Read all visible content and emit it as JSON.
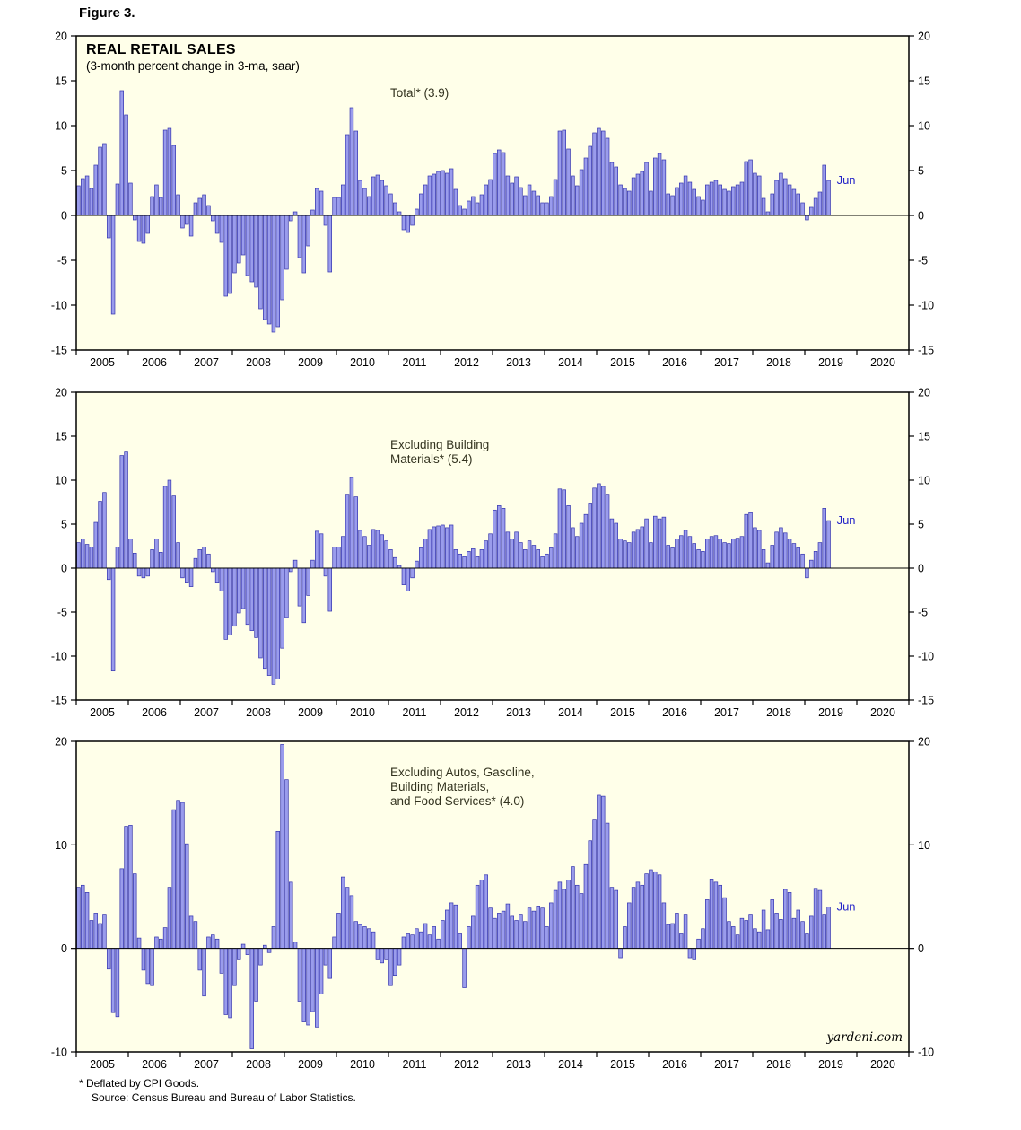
{
  "figure_label": "Figure 3.",
  "header": {
    "title": "REAL RETAIL SALES",
    "subtitle": "(3-month percent change in 3-ma, saar)"
  },
  "footnotes": {
    "deflator": "* Deflated by CPI Goods.",
    "source": "Source: Census Bureau and Bureau of Labor Statistics."
  },
  "watermark": "yardeni.com",
  "colors": {
    "panel_bg": "#FFFFE9",
    "bar_fill": "#9A9CEC",
    "bar_stroke": "#3434AE",
    "axis": "#000000",
    "annotation": "#33331F",
    "latest_label": "#2323C8"
  },
  "x_years": [
    "2005",
    "2006",
    "2007",
    "2008",
    "2009",
    "2010",
    "2011",
    "2012",
    "2013",
    "2014",
    "2015",
    "2016",
    "2017",
    "2018",
    "2019",
    "2020"
  ],
  "chart_data": [
    {
      "type": "bar",
      "title": "Total* (3.9)",
      "label_lines": [
        "Total* (3.9)"
      ],
      "latest_label": "Jun",
      "latest_value": 3.9,
      "ylim": [
        -15,
        20
      ],
      "yticks": [
        20,
        15,
        10,
        5,
        0,
        -5,
        -10,
        -15
      ],
      "x_start": "2005-01",
      "x_end": "2019-06",
      "values": [
        3.3,
        4.1,
        4.4,
        3.0,
        5.6,
        7.6,
        8.0,
        -2.5,
        -11.0,
        3.5,
        13.9,
        11.2,
        3.6,
        -0.5,
        -2.9,
        -3.1,
        -2.0,
        2.1,
        3.4,
        2.0,
        9.5,
        9.7,
        7.8,
        2.3,
        -1.4,
        -1.0,
        -2.3,
        1.4,
        1.9,
        2.3,
        1.1,
        -0.6,
        -2.0,
        -3.0,
        -9.0,
        -8.7,
        -6.4,
        -5.3,
        -4.4,
        -6.7,
        -7.4,
        -8.0,
        -10.4,
        -11.6,
        -12.1,
        -13.0,
        -12.4,
        -9.4,
        -6.0,
        -0.6,
        0.4,
        -4.7,
        -6.4,
        -3.4,
        0.6,
        3.0,
        2.7,
        -1.1,
        -6.3,
        2.0,
        2.0,
        3.4,
        9.0,
        12.0,
        9.4,
        3.9,
        3.0,
        2.1,
        4.3,
        4.5,
        3.9,
        3.3,
        2.4,
        1.4,
        0.4,
        -1.6,
        -1.9,
        -1.1,
        0.7,
        2.4,
        3.4,
        4.4,
        4.6,
        4.9,
        5.0,
        4.7,
        5.2,
        2.9,
        1.1,
        0.7,
        1.6,
        2.1,
        1.4,
        2.3,
        3.4,
        4.0,
        6.9,
        7.3,
        7.0,
        4.4,
        3.6,
        4.3,
        3.1,
        2.2,
        3.4,
        2.7,
        2.2,
        1.4,
        1.4,
        2.1,
        4.0,
        9.4,
        9.5,
        7.4,
        4.4,
        3.3,
        5.1,
        6.4,
        7.7,
        9.2,
        9.7,
        9.4,
        8.6,
        5.9,
        5.4,
        3.4,
        3.0,
        2.7,
        4.2,
        4.6,
        4.9,
        5.9,
        2.7,
        6.4,
        6.9,
        6.2,
        2.4,
        2.2,
        3.1,
        3.6,
        4.4,
        3.7,
        2.9,
        2.1,
        1.7,
        3.4,
        3.7,
        3.9,
        3.4,
        2.9,
        2.7,
        3.2,
        3.4,
        3.7,
        6.0,
        6.2,
        4.7,
        4.4,
        1.9,
        0.4,
        2.4,
        3.9,
        4.7,
        4.1,
        3.4,
        2.9,
        2.4,
        1.4,
        -0.5,
        0.9,
        1.9,
        2.6,
        5.6,
        3.9
      ]
    },
    {
      "type": "bar",
      "title": "Excluding Building Materials* (5.4)",
      "label_lines": [
        "Excluding Building",
        "Materials* (5.4)"
      ],
      "latest_label": "Jun",
      "latest_value": 5.4,
      "ylim": [
        -15,
        20
      ],
      "yticks": [
        20,
        15,
        10,
        5,
        0,
        -5,
        -10,
        -15
      ],
      "x_start": "2005-01",
      "x_end": "2019-06",
      "values": [
        2.9,
        3.3,
        2.7,
        2.4,
        5.2,
        7.6,
        8.6,
        -1.3,
        -11.7,
        2.4,
        12.8,
        13.2,
        3.3,
        1.7,
        -0.9,
        -1.1,
        -0.9,
        2.1,
        3.3,
        1.8,
        9.3,
        10.0,
        8.2,
        2.9,
        -1.1,
        -1.6,
        -2.1,
        1.1,
        2.1,
        2.4,
        1.6,
        -0.4,
        -1.6,
        -2.6,
        -8.1,
        -7.6,
        -6.6,
        -5.1,
        -4.6,
        -6.4,
        -7.1,
        -7.9,
        -10.2,
        -11.4,
        -12.2,
        -13.2,
        -12.6,
        -9.1,
        -5.6,
        -0.4,
        0.9,
        -4.3,
        -6.2,
        -3.1,
        0.9,
        4.2,
        3.9,
        -0.9,
        -4.9,
        2.4,
        2.4,
        3.6,
        8.4,
        10.3,
        8.1,
        4.3,
        3.6,
        2.6,
        4.4,
        4.3,
        3.8,
        3.1,
        2.1,
        1.2,
        0.3,
        -1.9,
        -2.6,
        -1.1,
        0.8,
        2.3,
        3.3,
        4.4,
        4.7,
        4.8,
        4.9,
        4.6,
        4.9,
        2.1,
        1.6,
        1.3,
        1.9,
        2.2,
        1.3,
        2.1,
        3.1,
        3.9,
        6.6,
        7.1,
        6.8,
        4.1,
        3.3,
        4.1,
        2.9,
        2.1,
        3.1,
        2.6,
        2.1,
        1.3,
        1.6,
        2.3,
        3.9,
        9.0,
        8.9,
        7.1,
        4.6,
        3.6,
        5.1,
        6.1,
        7.4,
        9.1,
        9.6,
        9.3,
        8.4,
        5.6,
        5.1,
        3.3,
        3.1,
        2.9,
        4.1,
        4.4,
        4.7,
        5.6,
        2.9,
        5.9,
        5.6,
        5.8,
        2.6,
        2.3,
        3.3,
        3.7,
        4.3,
        3.6,
        2.8,
        2.1,
        1.9,
        3.3,
        3.6,
        3.7,
        3.3,
        2.9,
        2.8,
        3.3,
        3.4,
        3.6,
        6.1,
        6.3,
        4.6,
        4.3,
        2.1,
        0.6,
        2.6,
        4.1,
        4.6,
        4.0,
        3.3,
        2.8,
        2.3,
        1.6,
        -1.1,
        0.9,
        1.9,
        2.9,
        6.8,
        5.4
      ]
    },
    {
      "type": "bar",
      "title": "Excluding Autos, Gasoline, Building Materials, and Food Services* (4.0)",
      "label_lines": [
        "Excluding Autos, Gasoline,",
        "Building Materials,",
        "and Food Services* (4.0)"
      ],
      "latest_label": "Jun",
      "latest_value": 4.0,
      "ylim": [
        -10,
        20
      ],
      "yticks": [
        20,
        10,
        0,
        -10
      ],
      "x_start": "2005-01",
      "x_end": "2019-06",
      "values": [
        5.9,
        6.1,
        5.4,
        2.7,
        3.4,
        2.4,
        3.3,
        -2.0,
        -6.2,
        -6.6,
        7.7,
        11.8,
        11.9,
        7.2,
        1.0,
        -2.1,
        -3.4,
        -3.6,
        1.1,
        0.9,
        2.0,
        5.9,
        13.4,
        14.3,
        14.1,
        10.1,
        3.1,
        2.6,
        -2.1,
        -4.6,
        1.1,
        1.3,
        0.9,
        -2.4,
        -6.4,
        -6.7,
        -3.6,
        -1.1,
        0.4,
        -0.6,
        -9.7,
        -5.1,
        -1.6,
        0.3,
        -0.4,
        2.1,
        11.3,
        19.7,
        16.3,
        6.4,
        0.6,
        -5.1,
        -7.1,
        -7.4,
        -6.1,
        -7.6,
        -4.4,
        -1.6,
        -2.9,
        1.1,
        3.4,
        6.9,
        5.9,
        5.1,
        2.6,
        2.3,
        2.1,
        1.9,
        1.6,
        -1.1,
        -1.4,
        -1.1,
        -3.6,
        -2.6,
        -1.6,
        1.1,
        1.4,
        1.3,
        1.9,
        1.6,
        2.4,
        1.3,
        2.1,
        0.9,
        2.7,
        3.7,
        4.4,
        4.2,
        1.4,
        -3.8,
        2.1,
        3.1,
        6.1,
        6.6,
        7.1,
        3.9,
        2.9,
        3.4,
        3.6,
        4.3,
        3.1,
        2.7,
        3.3,
        2.6,
        3.9,
        3.6,
        4.1,
        3.9,
        2.1,
        4.4,
        5.6,
        6.4,
        5.7,
        6.6,
        7.9,
        6.1,
        5.3,
        8.1,
        10.4,
        12.4,
        14.8,
        14.7,
        12.1,
        5.9,
        5.6,
        -0.9,
        2.1,
        4.4,
        5.9,
        6.4,
        6.1,
        7.2,
        7.6,
        7.4,
        7.1,
        4.4,
        2.3,
        2.4,
        3.4,
        1.4,
        3.3,
        -0.9,
        -1.1,
        0.9,
        1.9,
        4.7,
        6.7,
        6.4,
        6.1,
        4.9,
        2.6,
        2.1,
        1.3,
        2.9,
        2.7,
        3.3,
        1.9,
        1.6,
        3.7,
        1.8,
        4.7,
        3.4,
        2.8,
        5.7,
        5.4,
        2.9,
        3.7,
        2.6,
        1.4,
        3.1,
        5.8,
        5.6,
        3.3,
        4.0
      ]
    }
  ]
}
